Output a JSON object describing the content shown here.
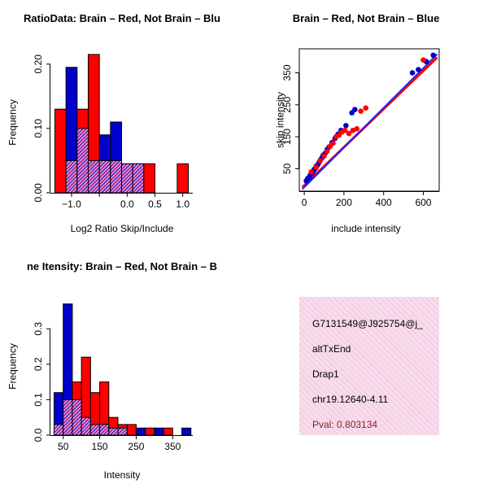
{
  "colors": {
    "red": "#FF0000",
    "blue": "#0000CD",
    "line_red": "#FF0000",
    "line_blue": "#2222FF",
    "overlap_bg": "#F6CFE3",
    "overlap_line1": "#C2188C",
    "overlap_line2": "#5533CC",
    "info_bg": "#F8DCEC",
    "info_hatch": "#EFC6DF",
    "pval": "#8B2020",
    "axis": "#000000"
  },
  "info_box": {
    "lines": [
      "G7131549@J925754@j_",
      "altTxEnd",
      "Drap1",
      "chr19.12640-4.11"
    ],
    "pval": "Pval: 0.803134"
  },
  "chart_data": [
    {
      "type": "bar",
      "title": "RatioData: Brain – Red, Not Brain – Blu",
      "xlabel": "Log2 Ratio Skip/Include",
      "ylabel": "Frequency",
      "bin_start": -1.3,
      "bin_width": 0.2,
      "categories": [
        -1.2,
        -1.0,
        -0.8,
        -0.6,
        -0.4,
        -0.2,
        0.0,
        0.2,
        0.4,
        0.6,
        0.8,
        1.0
      ],
      "series": [
        {
          "name": "Brain",
          "color": "red",
          "values": [
            0.13,
            0.05,
            0.13,
            0.215,
            0.05,
            0.05,
            0.045,
            0.045,
            0.045,
            0,
            0,
            0.045
          ]
        },
        {
          "name": "Not Brain",
          "color": "blue",
          "values": [
            0,
            0.195,
            0.1,
            0.05,
            0.09,
            0.11,
            0.045,
            0.045,
            0,
            0,
            0,
            0
          ]
        }
      ],
      "xlim": [
        -1.38,
        1.18
      ],
      "ylim": [
        0,
        0.22
      ],
      "xticks": [
        -1.0,
        -0.5,
        0.0,
        0.5,
        1.0
      ],
      "xtick_labels": [
        "−1.0",
        "",
        "0.0",
        "0.5",
        "1.0"
      ],
      "yticks": [
        0.0,
        0.1,
        0.2
      ],
      "ytick_labels": [
        "0.00",
        "0.10",
        "0.20"
      ],
      "grid": false
    },
    {
      "type": "scatter",
      "title": "Brain – Red, Not Brain – Blue",
      "xlabel": "include intensity",
      "ylabel": "skip intensity",
      "xlim": [
        -25,
        680
      ],
      "ylim": [
        -20,
        425
      ],
      "xticks": [
        0,
        200,
        400,
        600
      ],
      "xtick_labels": [
        "0",
        "200",
        "400",
        "600"
      ],
      "yticks": [
        50,
        150,
        250,
        350
      ],
      "ytick_labels": [
        "50",
        "150",
        "250",
        "350"
      ],
      "grid": false,
      "series": [
        {
          "name": "Brain",
          "color": "red",
          "points": [
            [
              35,
              40
            ],
            [
              60,
              55
            ],
            [
              80,
              75
            ],
            [
              100,
              90
            ],
            [
              115,
              105
            ],
            [
              130,
              120
            ],
            [
              145,
              130
            ],
            [
              160,
              150
            ],
            [
              175,
              155
            ],
            [
              190,
              165
            ],
            [
              205,
              170
            ],
            [
              225,
              160
            ],
            [
              245,
              170
            ],
            [
              265,
              175
            ],
            [
              285,
              230
            ],
            [
              310,
              240
            ],
            [
              600,
              390
            ]
          ]
        },
        {
          "name": "Not Brain",
          "color": "blue",
          "points": [
            [
              10,
              12
            ],
            [
              18,
              20
            ],
            [
              25,
              22
            ],
            [
              30,
              30
            ],
            [
              38,
              35
            ],
            [
              45,
              42
            ],
            [
              50,
              48
            ],
            [
              55,
              50
            ],
            [
              60,
              58
            ],
            [
              68,
              62
            ],
            [
              75,
              70
            ],
            [
              82,
              78
            ],
            [
              90,
              85
            ],
            [
              95,
              92
            ],
            [
              105,
              98
            ],
            [
              115,
              110
            ],
            [
              125,
              118
            ],
            [
              140,
              132
            ],
            [
              155,
              145
            ],
            [
              170,
              158
            ],
            [
              185,
              170
            ],
            [
              210,
              185
            ],
            [
              240,
              225
            ],
            [
              255,
              235
            ],
            [
              545,
              350
            ],
            [
              575,
              360
            ],
            [
              615,
              385
            ],
            [
              650,
              405
            ]
          ]
        }
      ],
      "lines": [
        {
          "name": "fit-brain",
          "color": "red",
          "from": [
            -10,
            -8
          ],
          "to": [
            670,
            398
          ]
        },
        {
          "name": "fit-notbrain",
          "color": "blue",
          "from": [
            -10,
            -14
          ],
          "to": [
            670,
            408
          ]
        }
      ]
    },
    {
      "type": "bar",
      "title": "ne Itensity: Brain – Red, Not Brain – B",
      "xlabel": "Intensity",
      "ylabel": "Frequency",
      "bin_start": 25,
      "bin_width": 25,
      "categories": [
        37.5,
        62.5,
        87.5,
        112.5,
        137.5,
        162.5,
        187.5,
        212.5,
        237.5,
        262.5,
        287.5,
        312.5,
        337.5,
        362.5,
        387.5
      ],
      "series": [
        {
          "name": "Brain",
          "color": "red",
          "values": [
            0.03,
            0.1,
            0.15,
            0.22,
            0.12,
            0.15,
            0.05,
            0.03,
            0.03,
            0,
            0.02,
            0,
            0.02,
            0,
            0
          ]
        },
        {
          "name": "Not Brain",
          "color": "blue",
          "values": [
            0.12,
            0.37,
            0.1,
            0.05,
            0.03,
            0.03,
            0.02,
            0.02,
            0,
            0.02,
            0,
            0.02,
            0,
            0,
            0.02
          ]
        }
      ],
      "xlim": [
        15,
        405
      ],
      "ylim": [
        0,
        0.39
      ],
      "xticks": [
        50,
        150,
        250,
        350
      ],
      "xtick_labels": [
        "50",
        "150",
        "250",
        "350"
      ],
      "yticks": [
        0.0,
        0.1,
        0.2,
        0.3
      ],
      "ytick_labels": [
        "0.0",
        "0.1",
        "0.2",
        "0.3"
      ],
      "grid": false
    }
  ]
}
